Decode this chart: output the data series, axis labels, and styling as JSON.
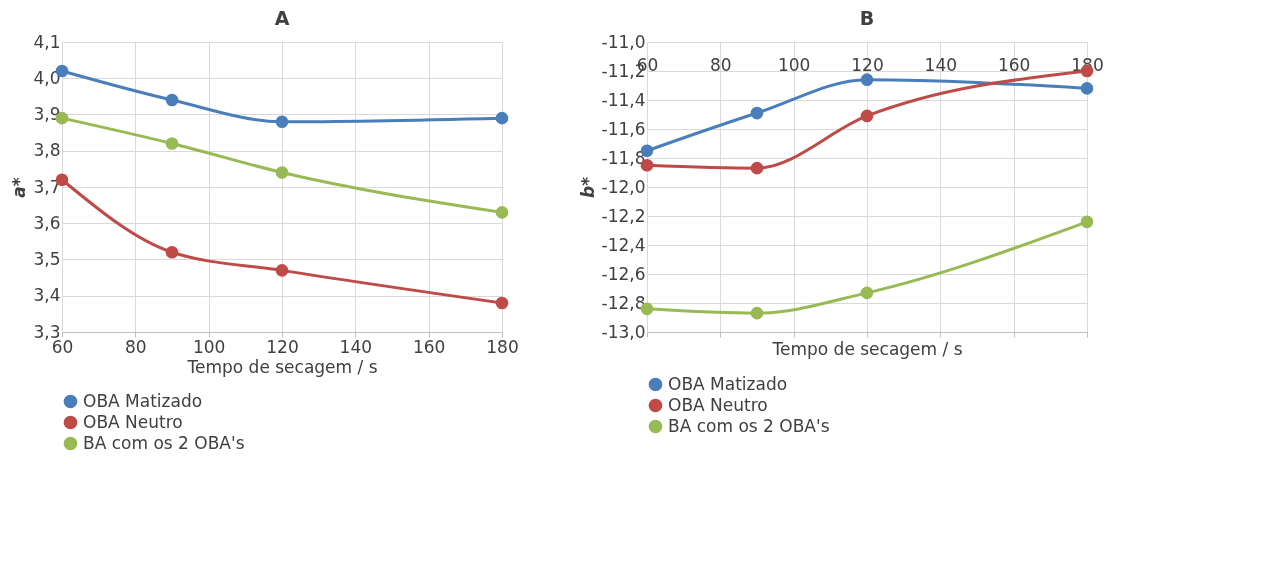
{
  "chart_data": [
    {
      "type": "line",
      "title": "A",
      "xlabel": "Tempo de secagem / s",
      "ylabel": "a*",
      "x": [
        60,
        90,
        120,
        180
      ],
      "series": [
        {
          "name": "OBA Matizado",
          "color": "#4a7ebb",
          "values": [
            4.02,
            3.94,
            3.88,
            3.89
          ]
        },
        {
          "name": "OBA Neutro",
          "color": "#be4b48",
          "values": [
            3.72,
            3.52,
            3.47,
            3.38
          ]
        },
        {
          "name": "BA com os 2 OBA's",
          "color": "#98b954",
          "values": [
            3.89,
            3.82,
            3.74,
            3.63
          ]
        }
      ],
      "xlim": [
        60,
        180
      ],
      "xticks": [
        60,
        80,
        100,
        120,
        140,
        160,
        180
      ],
      "ylim": [
        3.3,
        4.1
      ],
      "yticks": [
        {
          "value": 3.3,
          "label": "3,3"
        },
        {
          "value": 3.4,
          "label": "3,4"
        },
        {
          "value": 3.5,
          "label": "3,5"
        },
        {
          "value": 3.6,
          "label": "3,6"
        },
        {
          "value": 3.7,
          "label": "3,7"
        },
        {
          "value": 3.8,
          "label": "3,8"
        },
        {
          "value": 3.9,
          "label": "3,9"
        },
        {
          "value": 4.0,
          "label": "4,0"
        },
        {
          "value": 4.1,
          "label": "4,1"
        }
      ],
      "grid": true,
      "legend": "bottom",
      "marker": "circle",
      "line_style": "solid"
    },
    {
      "type": "line",
      "title": "B",
      "xlabel": "Tempo de secagem / s",
      "ylabel": "b*",
      "x": [
        60,
        90,
        120,
        180
      ],
      "series": [
        {
          "name": "OBA Matizado",
          "color": "#4a7ebb",
          "values": [
            -11.75,
            -11.49,
            -11.26,
            -11.32
          ]
        },
        {
          "name": "OBA Neutro",
          "color": "#be4b48",
          "values": [
            -11.85,
            -11.87,
            -11.51,
            -11.2
          ]
        },
        {
          "name": "BA com os 2 OBA's",
          "color": "#98b954",
          "values": [
            -12.84,
            -12.87,
            -12.73,
            -12.24
          ]
        }
      ],
      "xlim": [
        60,
        180
      ],
      "xticks": [
        60,
        80,
        100,
        120,
        140,
        160,
        180
      ],
      "ylim": [
        -13.0,
        -11.0
      ],
      "yticks": [
        {
          "value": -13.0,
          "label": "-13,0"
        },
        {
          "value": -12.8,
          "label": "-12,8"
        },
        {
          "value": -12.6,
          "label": "-12,6"
        },
        {
          "value": -12.4,
          "label": "-12,4"
        },
        {
          "value": -12.2,
          "label": "-12,2"
        },
        {
          "value": -12.0,
          "label": "-12,0"
        },
        {
          "value": -11.8,
          "label": "-11,8"
        },
        {
          "value": -11.6,
          "label": "-11,6"
        },
        {
          "value": -11.4,
          "label": "-11,4"
        },
        {
          "value": -11.2,
          "label": "-11,2"
        },
        {
          "value": -11.0,
          "label": "-11,0"
        }
      ],
      "grid": true,
      "legend": "bottom",
      "marker": "circle",
      "line_style": "solid"
    }
  ]
}
